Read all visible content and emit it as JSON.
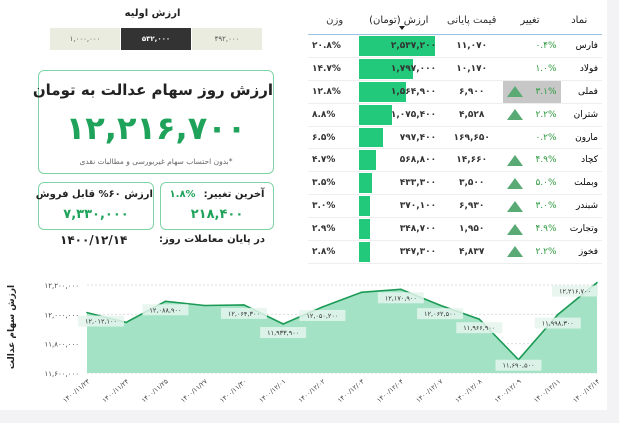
{
  "initial_value": {
    "title": "ارزش اولیه",
    "options": [
      "۱,۰۰۰,۰۰۰",
      "۵۳۲,۰۰۰",
      "۴۹۲,۰۰۰"
    ],
    "selected": "۵۳۲,۰۰۰"
  },
  "main_card": {
    "title": "ارزش روز سهام عدالت به تومان",
    "value": "۱۲,۲۱۶,۷۰۰",
    "note": "*بدون احتساب سهام غیربورسی و مطالبات نقدی"
  },
  "sellable_card": {
    "title": "ارزش ۶۰% قابل فروش",
    "value": "۷,۳۳۰,۰۰۰"
  },
  "change_card": {
    "title": "آخرین تغییر:",
    "percent": "۱.۸%",
    "value": "۲۱۸,۴۰۰"
  },
  "end_of_day": {
    "label": "در پایان معاملات روز:",
    "date": "۱۴۰۰/۱۲/۱۴"
  },
  "table": {
    "headers": {
      "symbol": "نماد",
      "change": "تغییر",
      "price": "قیمت پایانی",
      "value": "ارزش (تومان)",
      "weight": "وزن"
    },
    "rows": [
      {
        "symbol": "فارس",
        "change": "۰.۴%",
        "up": false,
        "price": "۱۱,۰۷۰",
        "value": "۲,۵۳۷,۲۰۰",
        "value_num": 2537200,
        "weight": "۲۰.۸%"
      },
      {
        "symbol": "فولاد",
        "change": "۱.۰%",
        "up": false,
        "price": "۱۰,۱۷۰",
        "value": "۱,۷۹۷,۰۰۰",
        "value_num": 1797000,
        "weight": "۱۴.۷%"
      },
      {
        "symbol": "فملی",
        "change": "۳.۱%",
        "up": true,
        "highlight": true,
        "price": "۶,۹۰۰",
        "value": "۱,۵۶۴,۹۰۰",
        "value_num": 1564900,
        "weight": "۱۲.۸%"
      },
      {
        "symbol": "شتران",
        "change": "۲.۲%",
        "up": true,
        "price": "۴,۵۲۸",
        "value": "۱,۰۷۵,۴۰۰",
        "value_num": 1075400,
        "weight": "۸.۸%"
      },
      {
        "symbol": "مارون",
        "change": "۰.۲%",
        "up": false,
        "price": "۱۶۹,۶۵۰",
        "value": "۷۹۷,۴۰۰",
        "value_num": 797400,
        "weight": "۶.۵%"
      },
      {
        "symbol": "کچاد",
        "change": "۴.۹%",
        "up": true,
        "price": "۱۴,۶۶۰",
        "value": "۵۶۸,۸۰۰",
        "value_num": 568800,
        "weight": "۴.۷%"
      },
      {
        "symbol": "وبملت",
        "change": "۵.۰%",
        "up": true,
        "price": "۳,۵۰۰",
        "value": "۴۳۳,۳۰۰",
        "value_num": 433300,
        "weight": "۳.۵%"
      },
      {
        "symbol": "شبندر",
        "change": "۳.۰%",
        "up": true,
        "price": "۶,۹۳۰",
        "value": "۳۷۰,۱۰۰",
        "value_num": 370100,
        "weight": "۳.۰%"
      },
      {
        "symbol": "وتجارت",
        "change": "۴.۹%",
        "up": true,
        "price": "۱,۹۵۰",
        "value": "۳۴۸,۷۰۰",
        "value_num": 348700,
        "weight": "۲.۹%"
      },
      {
        "symbol": "فخوز",
        "change": "۲.۲%",
        "up": true,
        "price": "۴,۸۳۷",
        "value": "۳۴۷,۳۰۰",
        "value_num": 347300,
        "weight": "۲.۸%"
      }
    ]
  },
  "colors": {
    "accent": "#1fa35a",
    "bar": "#22c97a",
    "area": "#9fe0c2",
    "line": "#1b9a55",
    "selected_tab": "#333333"
  },
  "chart_data": {
    "type": "area",
    "ylabel": "ارزش سهام عدالت",
    "ylim": [
      11600000,
      12200000
    ],
    "yticks": [
      11600000,
      11800000,
      12000000,
      12200000
    ],
    "ytick_labels": [
      "۱۱,۶۰۰,۰۰۰",
      "۱۱,۸۰۰,۰۰۰",
      "۱۲,۰۰۰,۰۰۰",
      "۱۲,۲۰۰,۰۰۰"
    ],
    "grid": true,
    "categories": [
      "۱۴۰۰/۱۱/۲۳",
      "۱۴۰۰/۱۱/۲۴",
      "۱۴۰۰/۱۱/۲۵",
      "۱۴۰۰/۱۱/۲۷",
      "۱۴۰۰/۱۱/۳۰",
      "۱۴۰۰/۱۲/۰۱",
      "۱۴۰۰/۱۲/۰۲",
      "۱۴۰۰/۱۲/۰۳",
      "۱۴۰۰/۱۲/۰۴",
      "۱۴۰۰/۱۲/۰۷",
      "۱۴۰۰/۱۲/۰۸",
      "۱۴۰۰/۱۲/۰۹",
      "۱۴۰۰/۱۲/۱۱",
      "۱۴۰۰/۱۲/۱۴"
    ],
    "values": [
      12012100,
      11945000,
      12088900,
      12060000,
      12064300,
      11933900,
      12050200,
      12150000,
      12170900,
      12062500,
      11966900,
      11690500,
      11998300,
      12216700
    ],
    "data_labels": [
      "۱۲,۰۱۲,۱۰۰",
      null,
      "۱۲,۰۸۸,۹۰۰",
      null,
      "۱۲,۰۶۴,۳۰۰",
      "۱۱,۹۳۳,۹۰۰",
      "۱۲,۰۵۰,۲۰۰",
      null,
      "۱۲,۱۷۰,۹۰۰",
      "۱۲,۰۶۲,۵۰۰",
      "۱۱,۹۶۶,۹۰۰",
      "۱۱,۶۹۰,۵۰۰",
      "۱۱,۹۹۸,۳۰۰",
      "۱۲,۲۱۶,۷۰۰"
    ]
  }
}
